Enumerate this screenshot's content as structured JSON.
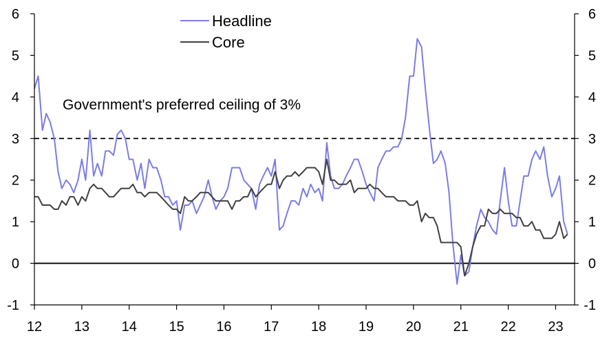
{
  "chart_data": {
    "type": "line",
    "title": "",
    "xlabel": "",
    "ylabel": "",
    "x_ticks": [
      "12",
      "13",
      "14",
      "15",
      "16",
      "17",
      "18",
      "19",
      "20",
      "21",
      "22",
      "23"
    ],
    "x_range": [
      2012.0,
      2023.4
    ],
    "ylim": [
      -1,
      6
    ],
    "y_ticks": [
      -1,
      0,
      1,
      2,
      3,
      4,
      5,
      6
    ],
    "y_ticks_right": [
      -1,
      0,
      1,
      2,
      3,
      4,
      5,
      6
    ],
    "grid": false,
    "legend_placement": "top-center",
    "reference_lines": [
      {
        "y": 0,
        "style": "solid"
      },
      {
        "y": 3,
        "style": "dashed"
      }
    ],
    "annotation": "Government's preferred ceiling of 3%",
    "series": [
      {
        "name": "Headline",
        "color": "#7b7be8",
        "points": [
          [
            2012.0,
            4.2
          ],
          [
            2012.08,
            4.5
          ],
          [
            2012.17,
            3.2
          ],
          [
            2012.25,
            3.6
          ],
          [
            2012.33,
            3.4
          ],
          [
            2012.42,
            3.0
          ],
          [
            2012.5,
            2.2
          ],
          [
            2012.58,
            1.8
          ],
          [
            2012.67,
            2.0
          ],
          [
            2012.75,
            1.9
          ],
          [
            2012.83,
            1.7
          ],
          [
            2012.92,
            2.0
          ],
          [
            2013.0,
            2.5
          ],
          [
            2013.08,
            2.0
          ],
          [
            2013.17,
            3.2
          ],
          [
            2013.25,
            2.1
          ],
          [
            2013.33,
            2.4
          ],
          [
            2013.42,
            2.1
          ],
          [
            2013.5,
            2.7
          ],
          [
            2013.58,
            2.7
          ],
          [
            2013.67,
            2.6
          ],
          [
            2013.75,
            3.1
          ],
          [
            2013.83,
            3.2
          ],
          [
            2013.92,
            3.0
          ],
          [
            2014.0,
            2.5
          ],
          [
            2014.08,
            2.5
          ],
          [
            2014.17,
            2.0
          ],
          [
            2014.25,
            2.4
          ],
          [
            2014.33,
            1.8
          ],
          [
            2014.42,
            2.5
          ],
          [
            2014.5,
            2.3
          ],
          [
            2014.58,
            2.3
          ],
          [
            2014.67,
            2.0
          ],
          [
            2014.75,
            1.6
          ],
          [
            2014.83,
            1.6
          ],
          [
            2014.92,
            1.4
          ],
          [
            2015.0,
            1.5
          ],
          [
            2015.08,
            0.8
          ],
          [
            2015.17,
            1.4
          ],
          [
            2015.25,
            1.4
          ],
          [
            2015.33,
            1.5
          ],
          [
            2015.42,
            1.2
          ],
          [
            2015.5,
            1.4
          ],
          [
            2015.58,
            1.6
          ],
          [
            2015.67,
            2.0
          ],
          [
            2015.75,
            1.6
          ],
          [
            2015.83,
            1.3
          ],
          [
            2015.92,
            1.5
          ],
          [
            2016.0,
            1.6
          ],
          [
            2016.08,
            1.8
          ],
          [
            2016.17,
            2.3
          ],
          [
            2016.25,
            2.3
          ],
          [
            2016.33,
            2.3
          ],
          [
            2016.42,
            2.0
          ],
          [
            2016.5,
            1.9
          ],
          [
            2016.58,
            1.8
          ],
          [
            2016.67,
            1.3
          ],
          [
            2016.75,
            1.9
          ],
          [
            2016.83,
            2.1
          ],
          [
            2016.92,
            2.3
          ],
          [
            2017.0,
            2.1
          ],
          [
            2017.08,
            2.5
          ],
          [
            2017.17,
            0.8
          ],
          [
            2017.25,
            0.9
          ],
          [
            2017.33,
            1.2
          ],
          [
            2017.42,
            1.5
          ],
          [
            2017.5,
            1.5
          ],
          [
            2017.58,
            1.4
          ],
          [
            2017.67,
            1.8
          ],
          [
            2017.75,
            1.6
          ],
          [
            2017.83,
            1.9
          ],
          [
            2017.92,
            1.7
          ],
          [
            2018.0,
            1.8
          ],
          [
            2018.08,
            1.5
          ],
          [
            2018.17,
            2.9
          ],
          [
            2018.25,
            2.1
          ],
          [
            2018.33,
            1.8
          ],
          [
            2018.42,
            1.8
          ],
          [
            2018.5,
            1.9
          ],
          [
            2018.58,
            2.1
          ],
          [
            2018.67,
            2.3
          ],
          [
            2018.75,
            2.5
          ],
          [
            2018.83,
            2.5
          ],
          [
            2018.92,
            2.2
          ],
          [
            2019.0,
            1.9
          ],
          [
            2019.08,
            1.7
          ],
          [
            2019.17,
            1.5
          ],
          [
            2019.25,
            2.3
          ],
          [
            2019.33,
            2.5
          ],
          [
            2019.42,
            2.7
          ],
          [
            2019.5,
            2.7
          ],
          [
            2019.58,
            2.8
          ],
          [
            2019.67,
            2.8
          ],
          [
            2019.75,
            3.0
          ],
          [
            2019.83,
            3.5
          ],
          [
            2019.92,
            4.5
          ],
          [
            2020.0,
            4.5
          ],
          [
            2020.08,
            5.4
          ],
          [
            2020.17,
            5.2
          ],
          [
            2020.25,
            4.2
          ],
          [
            2020.33,
            3.3
          ],
          [
            2020.42,
            2.4
          ],
          [
            2020.5,
            2.5
          ],
          [
            2020.58,
            2.7
          ],
          [
            2020.67,
            2.4
          ],
          [
            2020.75,
            1.7
          ],
          [
            2020.83,
            0.5
          ],
          [
            2020.92,
            -0.5
          ],
          [
            2021.0,
            0.2
          ],
          [
            2021.08,
            -0.3
          ],
          [
            2021.17,
            -0.2
          ],
          [
            2021.25,
            0.4
          ],
          [
            2021.33,
            0.9
          ],
          [
            2021.42,
            1.3
          ],
          [
            2021.5,
            1.1
          ],
          [
            2021.58,
            1.0
          ],
          [
            2021.67,
            0.8
          ],
          [
            2021.75,
            0.7
          ],
          [
            2021.83,
            1.5
          ],
          [
            2021.92,
            2.3
          ],
          [
            2022.0,
            1.5
          ],
          [
            2022.08,
            0.9
          ],
          [
            2022.17,
            0.9
          ],
          [
            2022.25,
            1.5
          ],
          [
            2022.33,
            2.1
          ],
          [
            2022.42,
            2.1
          ],
          [
            2022.5,
            2.5
          ],
          [
            2022.58,
            2.7
          ],
          [
            2022.67,
            2.5
          ],
          [
            2022.75,
            2.8
          ],
          [
            2022.83,
            2.1
          ],
          [
            2022.92,
            1.6
          ],
          [
            2023.0,
            1.8
          ],
          [
            2023.08,
            2.1
          ],
          [
            2023.17,
            1.0
          ],
          [
            2023.25,
            0.7
          ]
        ]
      },
      {
        "name": "Core",
        "color": "#404040",
        "points": [
          [
            2012.0,
            1.6
          ],
          [
            2012.08,
            1.6
          ],
          [
            2012.17,
            1.4
          ],
          [
            2012.25,
            1.4
          ],
          [
            2012.33,
            1.4
          ],
          [
            2012.42,
            1.3
          ],
          [
            2012.5,
            1.3
          ],
          [
            2012.58,
            1.5
          ],
          [
            2012.67,
            1.4
          ],
          [
            2012.75,
            1.6
          ],
          [
            2012.83,
            1.6
          ],
          [
            2012.92,
            1.4
          ],
          [
            2013.0,
            1.6
          ],
          [
            2013.08,
            1.5
          ],
          [
            2013.17,
            1.8
          ],
          [
            2013.25,
            1.9
          ],
          [
            2013.33,
            1.8
          ],
          [
            2013.42,
            1.8
          ],
          [
            2013.5,
            1.7
          ],
          [
            2013.58,
            1.6
          ],
          [
            2013.67,
            1.6
          ],
          [
            2013.75,
            1.7
          ],
          [
            2013.83,
            1.8
          ],
          [
            2013.92,
            1.8
          ],
          [
            2014.0,
            1.8
          ],
          [
            2014.08,
            1.9
          ],
          [
            2014.17,
            1.7
          ],
          [
            2014.25,
            1.7
          ],
          [
            2014.33,
            1.6
          ],
          [
            2014.42,
            1.7
          ],
          [
            2014.5,
            1.7
          ],
          [
            2014.58,
            1.7
          ],
          [
            2014.67,
            1.6
          ],
          [
            2014.75,
            1.5
          ],
          [
            2014.83,
            1.4
          ],
          [
            2014.92,
            1.3
          ],
          [
            2015.0,
            1.3
          ],
          [
            2015.08,
            1.2
          ],
          [
            2015.17,
            1.6
          ],
          [
            2015.25,
            1.5
          ],
          [
            2015.33,
            1.5
          ],
          [
            2015.42,
            1.6
          ],
          [
            2015.5,
            1.7
          ],
          [
            2015.58,
            1.7
          ],
          [
            2015.67,
            1.7
          ],
          [
            2015.75,
            1.6
          ],
          [
            2015.83,
            1.5
          ],
          [
            2015.92,
            1.5
          ],
          [
            2016.0,
            1.5
          ],
          [
            2016.08,
            1.5
          ],
          [
            2016.17,
            1.3
          ],
          [
            2016.25,
            1.5
          ],
          [
            2016.33,
            1.5
          ],
          [
            2016.42,
            1.6
          ],
          [
            2016.5,
            1.6
          ],
          [
            2016.58,
            1.8
          ],
          [
            2016.67,
            1.6
          ],
          [
            2016.75,
            1.7
          ],
          [
            2016.83,
            1.8
          ],
          [
            2016.92,
            1.9
          ],
          [
            2017.0,
            1.9
          ],
          [
            2017.08,
            2.2
          ],
          [
            2017.17,
            1.8
          ],
          [
            2017.25,
            2.0
          ],
          [
            2017.33,
            2.1
          ],
          [
            2017.42,
            2.1
          ],
          [
            2017.5,
            2.2
          ],
          [
            2017.58,
            2.1
          ],
          [
            2017.67,
            2.2
          ],
          [
            2017.75,
            2.3
          ],
          [
            2017.83,
            2.3
          ],
          [
            2017.92,
            2.3
          ],
          [
            2018.0,
            2.2
          ],
          [
            2018.08,
            1.9
          ],
          [
            2018.17,
            2.5
          ],
          [
            2018.25,
            2.0
          ],
          [
            2018.33,
            2.0
          ],
          [
            2018.42,
            1.9
          ],
          [
            2018.5,
            1.9
          ],
          [
            2018.58,
            1.9
          ],
          [
            2018.67,
            2.0
          ],
          [
            2018.75,
            1.7
          ],
          [
            2018.83,
            1.8
          ],
          [
            2018.92,
            1.8
          ],
          [
            2019.0,
            1.8
          ],
          [
            2019.08,
            1.9
          ],
          [
            2019.17,
            1.8
          ],
          [
            2019.25,
            1.8
          ],
          [
            2019.33,
            1.7
          ],
          [
            2019.42,
            1.6
          ],
          [
            2019.5,
            1.6
          ],
          [
            2019.58,
            1.6
          ],
          [
            2019.67,
            1.5
          ],
          [
            2019.75,
            1.5
          ],
          [
            2019.83,
            1.5
          ],
          [
            2019.92,
            1.4
          ],
          [
            2020.0,
            1.4
          ],
          [
            2020.08,
            1.5
          ],
          [
            2020.17,
            1.0
          ],
          [
            2020.25,
            1.2
          ],
          [
            2020.33,
            1.1
          ],
          [
            2020.42,
            1.1
          ],
          [
            2020.5,
            0.9
          ],
          [
            2020.58,
            0.5
          ],
          [
            2020.67,
            0.5
          ],
          [
            2020.75,
            0.5
          ],
          [
            2020.83,
            0.5
          ],
          [
            2020.92,
            0.5
          ],
          [
            2021.0,
            0.4
          ],
          [
            2021.08,
            -0.3
          ],
          [
            2021.17,
            0.0
          ],
          [
            2021.25,
            0.4
          ],
          [
            2021.33,
            0.7
          ],
          [
            2021.42,
            0.9
          ],
          [
            2021.5,
            0.9
          ],
          [
            2021.58,
            1.3
          ],
          [
            2021.67,
            1.2
          ],
          [
            2021.75,
            1.2
          ],
          [
            2021.83,
            1.3
          ],
          [
            2021.92,
            1.2
          ],
          [
            2022.0,
            1.2
          ],
          [
            2022.08,
            1.2
          ],
          [
            2022.17,
            1.1
          ],
          [
            2022.25,
            1.1
          ],
          [
            2022.33,
            0.9
          ],
          [
            2022.42,
            0.9
          ],
          [
            2022.5,
            1.0
          ],
          [
            2022.58,
            0.8
          ],
          [
            2022.67,
            0.8
          ],
          [
            2022.75,
            0.6
          ],
          [
            2022.83,
            0.6
          ],
          [
            2022.92,
            0.6
          ],
          [
            2023.0,
            0.7
          ],
          [
            2023.08,
            1.0
          ],
          [
            2023.17,
            0.6
          ],
          [
            2023.25,
            0.7
          ]
        ]
      }
    ]
  }
}
